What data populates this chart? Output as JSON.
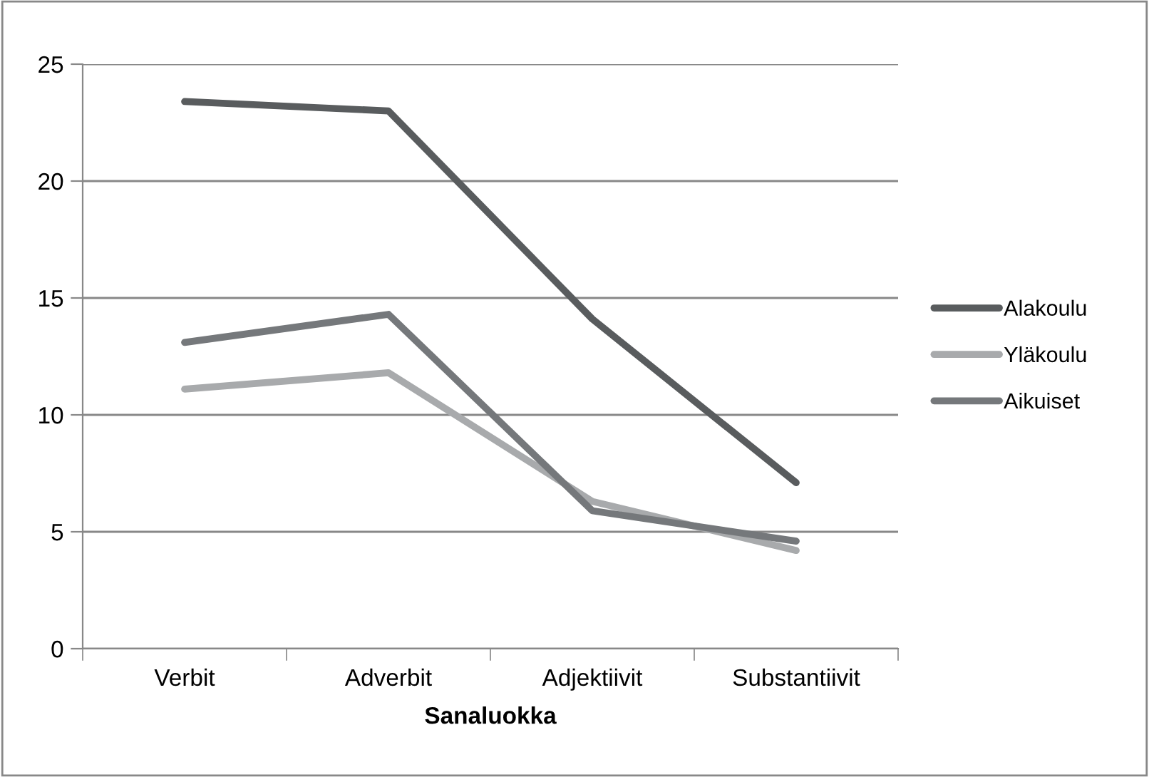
{
  "chart_data": {
    "type": "line",
    "xlabel": "Sanaluokka",
    "categories": [
      "Verbit",
      "Adverbit",
      "Adjektiivit",
      "Substantiivit"
    ],
    "series": [
      {
        "name": "Alakoulu",
        "color": "#595c5e",
        "values": [
          23.4,
          23.0,
          14.1,
          7.1
        ]
      },
      {
        "name": "Yläkoulu",
        "color": "#a8aaac",
        "values": [
          11.1,
          11.8,
          6.3,
          4.2
        ]
      },
      {
        "name": "Aikuiset",
        "color": "#75787b",
        "values": [
          13.1,
          14.3,
          5.9,
          4.6
        ]
      }
    ],
    "ylim": [
      0,
      25
    ],
    "yticks": [
      0,
      5,
      10,
      15,
      20,
      25
    ],
    "grid": "y",
    "legend": "right",
    "marker": "none",
    "line_style": "solid"
  }
}
